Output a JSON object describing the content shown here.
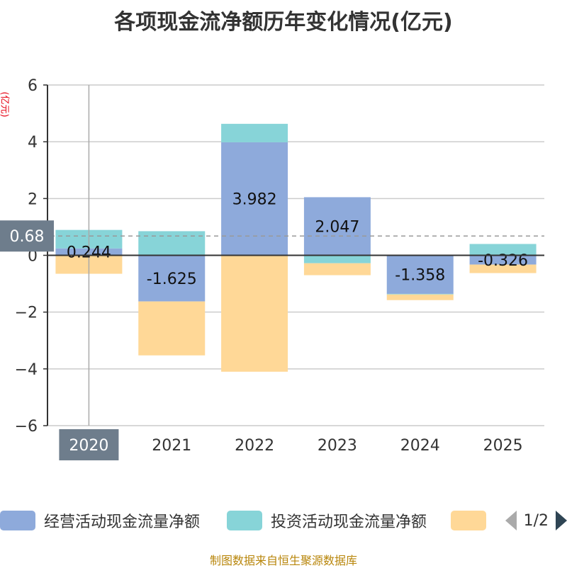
{
  "title": "各项现金流净额历年变化情况(亿元)",
  "unit_label": "(亿元)",
  "source": "制图数据来自恒生聚源数据库",
  "pager_text": "1/2",
  "pointer": {
    "value_label": "0.68",
    "value": 0.68,
    "category_label": "2020"
  },
  "legend": [
    {
      "name": "经营活动现金流量净额",
      "color": "#8eaadb"
    },
    {
      "name": "投资活动现金流量净额",
      "color": "#87d4d8"
    },
    {
      "name": "",
      "color": "#ffd897"
    }
  ],
  "chart_data": {
    "type": "bar",
    "stacked": true,
    "title": "各项现金流净额历年变化情况(亿元)",
    "ylabel": "(亿元)",
    "categories": [
      "2020",
      "2021",
      "2022",
      "2023",
      "2024",
      "2025"
    ],
    "ylim": [
      -6,
      6
    ],
    "yticks": [
      6,
      4,
      2,
      0,
      -2,
      -4,
      -6
    ],
    "ytick_labels": [
      "6",
      "4",
      "2",
      "0",
      "−2",
      "−4",
      "−6"
    ],
    "grid": true,
    "legend_position": "bottom",
    "series": [
      {
        "name": "经营活动现金流量净额",
        "color": "#8eaadb",
        "values": [
          0.244,
          -1.625,
          3.982,
          2.047,
          -1.358,
          -0.326
        ],
        "labels": [
          "0.244",
          "-1.625",
          "3.982",
          "2.047",
          "-1.358",
          "-0.326"
        ]
      },
      {
        "name": "投资活动现金流量净额",
        "color": "#87d4d8",
        "values": [
          0.65,
          0.85,
          0.65,
          -0.28,
          -0.02,
          0.4
        ]
      },
      {
        "name": "",
        "color": "#ffd897",
        "values": [
          -0.65,
          -1.9,
          -4.1,
          -0.42,
          -0.2,
          -0.3
        ]
      }
    ]
  }
}
